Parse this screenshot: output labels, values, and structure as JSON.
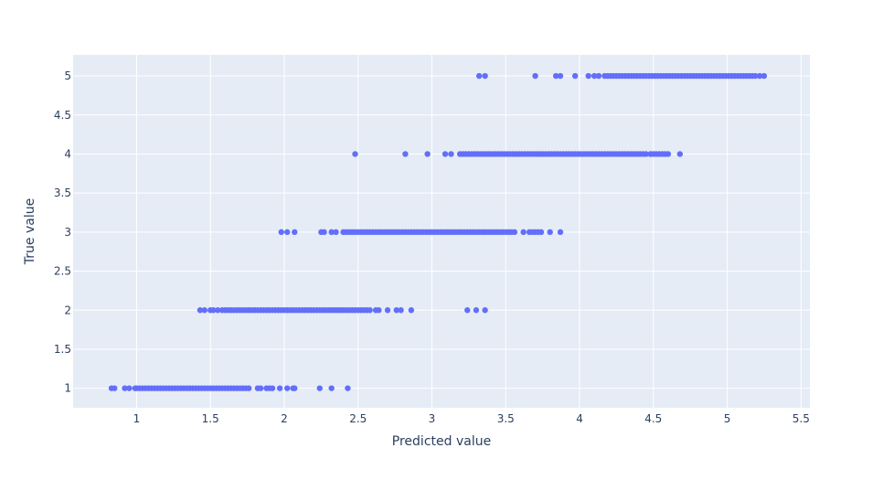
{
  "chart_data": {
    "type": "scatter",
    "xlabel": "Predicted value",
    "ylabel": "True value",
    "xlim": [
      0.57,
      5.56
    ],
    "ylim": [
      0.75,
      5.27
    ],
    "xticks": [
      "1",
      "1.5",
      "2",
      "2.5",
      "3",
      "3.5",
      "4",
      "4.5",
      "5",
      "5.5"
    ],
    "yticks": [
      "1",
      "1.5",
      "2",
      "2.5",
      "3",
      "3.5",
      "4",
      "4.5",
      "5"
    ],
    "grid": true,
    "colors": {
      "plot_bg": "#e5ecf6",
      "grid": "#ffffff",
      "marker": "#636efa",
      "text": "#2a3f5f"
    },
    "series": [
      {
        "x": [
          0.83,
          0.85,
          0.92,
          0.95,
          0.99,
          1.0,
          1.02,
          1.04,
          1.06,
          1.08,
          1.1,
          1.12,
          1.14,
          1.16,
          1.18,
          1.2,
          1.22,
          1.24,
          1.26,
          1.28,
          1.3,
          1.32,
          1.34,
          1.36,
          1.38,
          1.4,
          1.42,
          1.44,
          1.46,
          1.48,
          1.5,
          1.52,
          1.54,
          1.56,
          1.58,
          1.6,
          1.62,
          1.64,
          1.66,
          1.68,
          1.7,
          1.72,
          1.74,
          1.76,
          1.82,
          1.84,
          1.88,
          1.9,
          1.92,
          1.97,
          2.02,
          2.06,
          2.07,
          2.24,
          2.32,
          2.43
        ],
        "y": [
          1,
          1,
          1,
          1,
          1,
          1,
          1,
          1,
          1,
          1,
          1,
          1,
          1,
          1,
          1,
          1,
          1,
          1,
          1,
          1,
          1,
          1,
          1,
          1,
          1,
          1,
          1,
          1,
          1,
          1,
          1,
          1,
          1,
          1,
          1,
          1,
          1,
          1,
          1,
          1,
          1,
          1,
          1,
          1,
          1,
          1,
          1,
          1,
          1,
          1,
          1,
          1,
          1,
          1,
          1,
          1
        ]
      },
      {
        "x": [
          1.43,
          1.46,
          1.5,
          1.52,
          1.55,
          1.58,
          1.6,
          1.62,
          1.64,
          1.66,
          1.68,
          1.7,
          1.72,
          1.74,
          1.76,
          1.78,
          1.8,
          1.82,
          1.84,
          1.86,
          1.88,
          1.9,
          1.92,
          1.94,
          1.96,
          1.98,
          2.0,
          2.02,
          2.04,
          2.06,
          2.08,
          2.1,
          2.12,
          2.14,
          2.16,
          2.18,
          2.2,
          2.22,
          2.24,
          2.26,
          2.28,
          2.3,
          2.32,
          2.34,
          2.36,
          2.38,
          2.4,
          2.42,
          2.44,
          2.46,
          2.48,
          2.5,
          2.52,
          2.54,
          2.56,
          2.58,
          2.62,
          2.64,
          2.7,
          2.76,
          2.79,
          2.86,
          3.24,
          3.3,
          3.36
        ],
        "y": [
          2,
          2,
          2,
          2,
          2,
          2,
          2,
          2,
          2,
          2,
          2,
          2,
          2,
          2,
          2,
          2,
          2,
          2,
          2,
          2,
          2,
          2,
          2,
          2,
          2,
          2,
          2,
          2,
          2,
          2,
          2,
          2,
          2,
          2,
          2,
          2,
          2,
          2,
          2,
          2,
          2,
          2,
          2,
          2,
          2,
          2,
          2,
          2,
          2,
          2,
          2,
          2,
          2,
          2,
          2,
          2,
          2,
          2,
          2,
          2,
          2,
          2,
          2,
          2,
          2
        ]
      },
      {
        "x": [
          1.98,
          2.02,
          2.07,
          2.25,
          2.27,
          2.32,
          2.35,
          2.4,
          2.42,
          2.44,
          2.46,
          2.48,
          2.5,
          2.52,
          2.54,
          2.56,
          2.58,
          2.6,
          2.62,
          2.64,
          2.66,
          2.68,
          2.7,
          2.72,
          2.74,
          2.76,
          2.78,
          2.8,
          2.82,
          2.84,
          2.86,
          2.88,
          2.9,
          2.92,
          2.94,
          2.96,
          2.98,
          3.0,
          3.02,
          3.04,
          3.06,
          3.08,
          3.1,
          3.12,
          3.14,
          3.16,
          3.18,
          3.2,
          3.22,
          3.24,
          3.26,
          3.28,
          3.3,
          3.32,
          3.34,
          3.36,
          3.38,
          3.4,
          3.42,
          3.44,
          3.46,
          3.48,
          3.5,
          3.52,
          3.54,
          3.56,
          3.62,
          3.66,
          3.68,
          3.7,
          3.72,
          3.74,
          3.8,
          3.87
        ],
        "y": [
          3,
          3,
          3,
          3,
          3,
          3,
          3,
          3,
          3,
          3,
          3,
          3,
          3,
          3,
          3,
          3,
          3,
          3,
          3,
          3,
          3,
          3,
          3,
          3,
          3,
          3,
          3,
          3,
          3,
          3,
          3,
          3,
          3,
          3,
          3,
          3,
          3,
          3,
          3,
          3,
          3,
          3,
          3,
          3,
          3,
          3,
          3,
          3,
          3,
          3,
          3,
          3,
          3,
          3,
          3,
          3,
          3,
          3,
          3,
          3,
          3,
          3,
          3,
          3,
          3,
          3,
          3,
          3,
          3,
          3,
          3,
          3,
          3,
          3
        ]
      },
      {
        "x": [
          2.48,
          2.82,
          2.97,
          3.09,
          3.13,
          3.19,
          3.21,
          3.23,
          3.25,
          3.27,
          3.29,
          3.31,
          3.33,
          3.35,
          3.37,
          3.39,
          3.41,
          3.43,
          3.45,
          3.47,
          3.49,
          3.51,
          3.53,
          3.55,
          3.57,
          3.59,
          3.61,
          3.63,
          3.65,
          3.67,
          3.69,
          3.71,
          3.73,
          3.75,
          3.77,
          3.79,
          3.81,
          3.83,
          3.85,
          3.87,
          3.89,
          3.91,
          3.93,
          3.95,
          3.97,
          3.99,
          4.01,
          4.03,
          4.05,
          4.07,
          4.09,
          4.11,
          4.13,
          4.15,
          4.17,
          4.19,
          4.21,
          4.23,
          4.25,
          4.27,
          4.29,
          4.31,
          4.33,
          4.35,
          4.37,
          4.39,
          4.41,
          4.43,
          4.45,
          4.48,
          4.5,
          4.52,
          4.54,
          4.56,
          4.58,
          4.6,
          4.68
        ],
        "y": [
          4,
          4,
          4,
          4,
          4,
          4,
          4,
          4,
          4,
          4,
          4,
          4,
          4,
          4,
          4,
          4,
          4,
          4,
          4,
          4,
          4,
          4,
          4,
          4,
          4,
          4,
          4,
          4,
          4,
          4,
          4,
          4,
          4,
          4,
          4,
          4,
          4,
          4,
          4,
          4,
          4,
          4,
          4,
          4,
          4,
          4,
          4,
          4,
          4,
          4,
          4,
          4,
          4,
          4,
          4,
          4,
          4,
          4,
          4,
          4,
          4,
          4,
          4,
          4,
          4,
          4,
          4,
          4,
          4,
          4,
          4,
          4,
          4,
          4,
          4,
          4,
          4
        ]
      },
      {
        "x": [
          3.32,
          3.36,
          3.7,
          3.84,
          3.87,
          3.97,
          4.06,
          4.1,
          4.13,
          4.17,
          4.19,
          4.21,
          4.23,
          4.25,
          4.27,
          4.29,
          4.31,
          4.33,
          4.35,
          4.37,
          4.39,
          4.41,
          4.43,
          4.45,
          4.47,
          4.49,
          4.51,
          4.53,
          4.55,
          4.57,
          4.59,
          4.61,
          4.63,
          4.65,
          4.67,
          4.69,
          4.71,
          4.73,
          4.75,
          4.77,
          4.79,
          4.81,
          4.83,
          4.85,
          4.87,
          4.89,
          4.91,
          4.93,
          4.95,
          4.97,
          4.99,
          5.01,
          5.03,
          5.05,
          5.07,
          5.09,
          5.11,
          5.13,
          5.15,
          5.17,
          5.19,
          5.22,
          5.25
        ],
        "y": [
          5,
          5,
          5,
          5,
          5,
          5,
          5,
          5,
          5,
          5,
          5,
          5,
          5,
          5,
          5,
          5,
          5,
          5,
          5,
          5,
          5,
          5,
          5,
          5,
          5,
          5,
          5,
          5,
          5,
          5,
          5,
          5,
          5,
          5,
          5,
          5,
          5,
          5,
          5,
          5,
          5,
          5,
          5,
          5,
          5,
          5,
          5,
          5,
          5,
          5,
          5,
          5,
          5,
          5,
          5,
          5,
          5,
          5,
          5,
          5,
          5,
          5,
          5
        ]
      }
    ]
  }
}
